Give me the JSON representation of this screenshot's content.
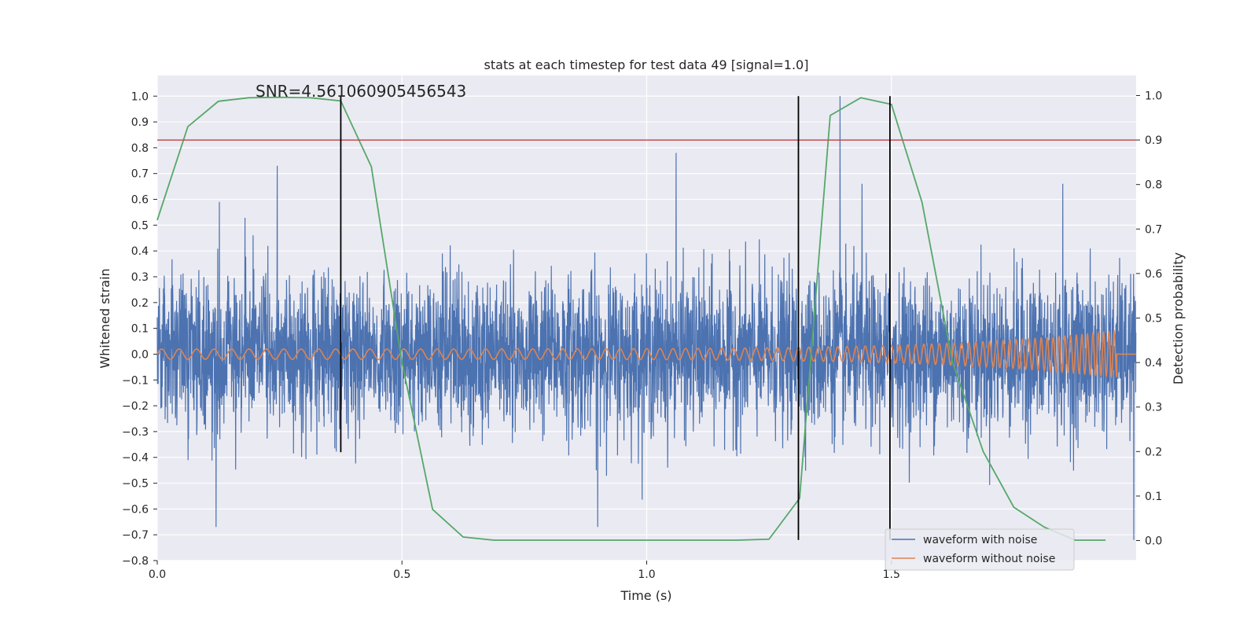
{
  "chart_data": {
    "type": "line",
    "title": "stats at each timestep for test data 49 [signal=1.0]",
    "xlabel": "Time (s)",
    "ylabel_left": "Whitened strain",
    "ylabel_right": "Detection probability",
    "xlim": [
      0.0,
      2.0
    ],
    "ylim_left": [
      -0.8,
      1.08
    ],
    "ylim_right": [
      -0.045,
      1.045
    ],
    "x_ticks": [
      0.0,
      0.5,
      1.0,
      1.5
    ],
    "x_tick_labels": [
      "0.0",
      "0.5",
      "1.0",
      "1.5"
    ],
    "left_ticks": [
      1.0,
      0.9,
      0.8,
      0.7,
      0.6,
      0.5,
      0.4,
      0.3,
      0.2,
      0.1,
      0.0,
      -0.1,
      -0.2,
      -0.3,
      -0.4,
      -0.5,
      -0.6,
      -0.7,
      -0.8
    ],
    "left_tick_labels": [
      "1.0",
      "0.9",
      "0.8",
      "0.7",
      "0.6",
      "0.5",
      "0.4",
      "0.3",
      "0.2",
      "0.1",
      "0.0",
      "−0.1",
      "−0.2",
      "−0.3",
      "−0.4",
      "−0.5",
      "−0.6",
      "−0.7",
      "−0.8"
    ],
    "right_ticks": [
      1.0,
      0.9,
      0.8,
      0.7,
      0.6,
      0.5,
      0.4,
      0.3,
      0.2,
      0.1,
      0.0
    ],
    "right_tick_labels": [
      "1.0",
      "0.9",
      "0.8",
      "0.7",
      "0.6",
      "0.5",
      "0.4",
      "0.3",
      "0.2",
      "0.1",
      "0.0"
    ],
    "annotation": "SNR=4.561060905456543",
    "annotation_pos": {
      "x": 0.2,
      "y": 1.0
    },
    "threshold": {
      "value": 0.9,
      "axis": "right",
      "color": "#c44e52"
    },
    "vertical_lines": [
      {
        "x": 0.375,
        "y0": -0.38,
        "y1": 1.0,
        "color": "#000000"
      },
      {
        "x": 1.31,
        "y0": -0.72,
        "y1": 1.0,
        "color": "#000000"
      },
      {
        "x": 1.497,
        "y0": -0.72,
        "y1": 1.0,
        "color": "#000000"
      }
    ],
    "series": [
      {
        "name": "waveform with noise",
        "color": "#4c72b0",
        "axis": "left",
        "kind": "noise",
        "sample_rate": 2048,
        "duration": 2.0,
        "amplitude_spread": 0.15,
        "spikes": [
          {
            "x": 0.245,
            "y": 0.73
          },
          {
            "x": 0.127,
            "y": 0.59
          },
          {
            "x": 1.06,
            "y": 0.78
          },
          {
            "x": 1.395,
            "y": 1.0
          },
          {
            "x": 1.44,
            "y": 0.66
          },
          {
            "x": 1.85,
            "y": 0.66
          },
          {
            "x": 0.12,
            "y": -0.67
          },
          {
            "x": 0.9,
            "y": -0.67
          },
          {
            "x": 1.995,
            "y": -0.72
          }
        ]
      },
      {
        "name": "waveform without noise",
        "color": "#dd8452",
        "axis": "left",
        "kind": "chirp",
        "t_end": 1.96,
        "amplitude_start": 0.02,
        "amplitude_end": 0.09,
        "freq_start": 28,
        "freq_end": 95
      },
      {
        "name": "detection probability",
        "color": "#55a868",
        "axis": "right",
        "kind": "line",
        "x": [
          0.0,
          0.0625,
          0.125,
          0.1875,
          0.25,
          0.3125,
          0.375,
          0.4375,
          0.5,
          0.5625,
          0.625,
          0.6875,
          0.75,
          0.8125,
          0.875,
          0.9375,
          1.0,
          1.0625,
          1.125,
          1.1875,
          1.25,
          1.3125,
          1.375,
          1.4375,
          1.5,
          1.5625,
          1.625,
          1.6875,
          1.75,
          1.8125,
          1.875,
          1.9375
        ],
        "y": [
          0.72,
          0.93,
          0.987,
          0.995,
          0.996,
          0.995,
          0.988,
          0.84,
          0.4,
          0.07,
          0.008,
          0.001,
          0.001,
          0.001,
          0.001,
          0.001,
          0.001,
          0.001,
          0.001,
          0.001,
          0.003,
          0.095,
          0.955,
          0.995,
          0.98,
          0.76,
          0.4,
          0.2,
          0.075,
          0.03,
          0.001,
          0.001
        ]
      }
    ],
    "legend": {
      "placement": "lower-right",
      "entries": [
        {
          "label": "waveform with noise",
          "color": "#4c72b0"
        },
        {
          "label": "waveform without noise",
          "color": "#dd8452"
        }
      ]
    },
    "style": {
      "axes_bg": "#eaeaf2",
      "grid_color": "#ffffff",
      "grid": true
    }
  }
}
